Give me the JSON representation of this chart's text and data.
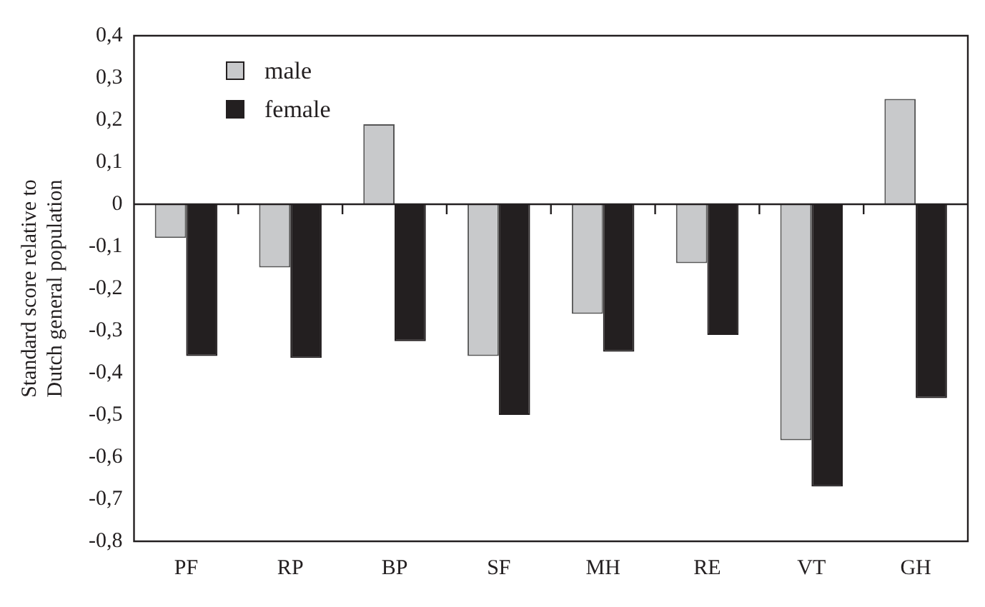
{
  "chart_data": {
    "type": "bar",
    "ylabel": "Standard score relative to\nDutch general population",
    "categories": [
      "PF",
      "RP",
      "BP",
      "SF",
      "MH",
      "RE",
      "VT",
      "GH"
    ],
    "series": [
      {
        "name": "male",
        "color": "#c8c9cb",
        "values": [
          -0.08,
          -0.15,
          0.19,
          -0.36,
          -0.26,
          -0.14,
          -0.56,
          0.25
        ]
      },
      {
        "name": "female",
        "color": "#231f20",
        "values": [
          -0.36,
          -0.365,
          -0.325,
          -0.5,
          -0.35,
          -0.31,
          -0.67,
          -0.46
        ]
      }
    ],
    "ylim": [
      -0.8,
      0.4
    ],
    "yticks": [
      {
        "value": 0.4,
        "label": "0,4"
      },
      {
        "value": 0.3,
        "label": "0,3"
      },
      {
        "value": 0.2,
        "label": "0,2"
      },
      {
        "value": 0.1,
        "label": "0,1"
      },
      0,
      {
        "value": -0.1,
        "label": "-0,1"
      },
      {
        "value": -0.2,
        "label": "-0,2"
      },
      {
        "value": -0.3,
        "label": "-0,3"
      },
      {
        "value": -0.4,
        "label": "-0,4"
      },
      {
        "value": -0.5,
        "label": "-0,5"
      },
      {
        "value": -0.6,
        "label": "-0,6"
      },
      {
        "value": -0.7,
        "label": "-0,7"
      },
      {
        "value": -0.8,
        "label": "-0,8"
      }
    ],
    "legend": "top left"
  }
}
